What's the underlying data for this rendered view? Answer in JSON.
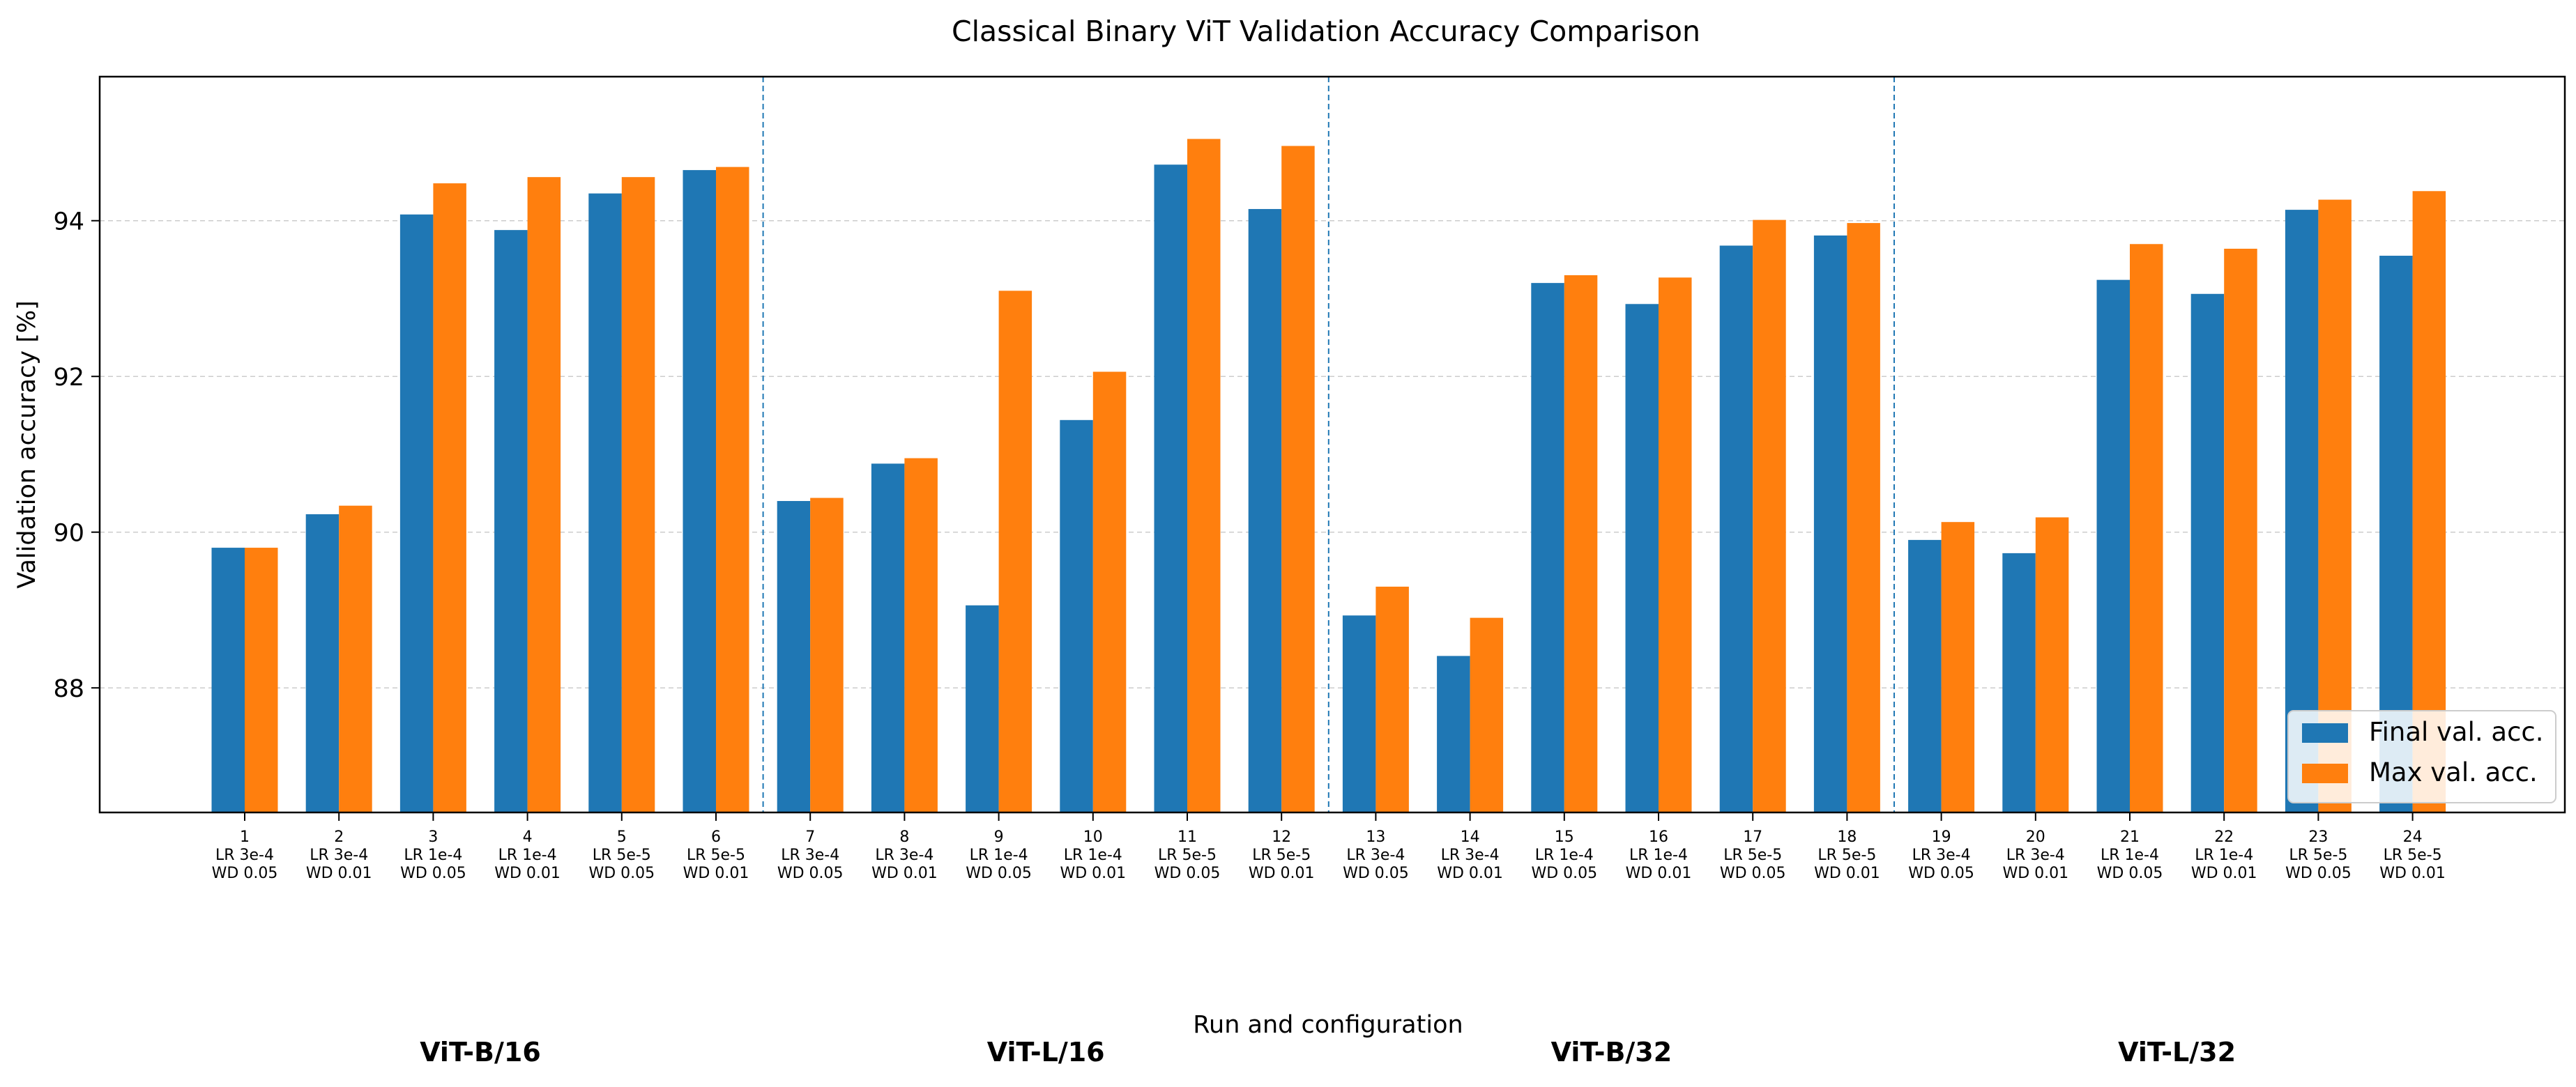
{
  "chart_data": {
    "type": "bar",
    "title": "Classical Binary ViT Validation Accuracy Comparison",
    "xlabel": "Run and configuration",
    "ylabel": "Validation accuracy [%]",
    "ylim": [
      86.4,
      95.85
    ],
    "yticks": [
      88,
      90,
      92,
      94
    ],
    "grid": "horizontal dashed",
    "legend_position": "lower-right",
    "categories": [
      {
        "run": "1",
        "lr": "LR 3e-4",
        "wd": "WD 0.05"
      },
      {
        "run": "2",
        "lr": "LR 3e-4",
        "wd": "WD 0.01"
      },
      {
        "run": "3",
        "lr": "LR 1e-4",
        "wd": "WD 0.05"
      },
      {
        "run": "4",
        "lr": "LR 1e-4",
        "wd": "WD 0.01"
      },
      {
        "run": "5",
        "lr": "LR 5e-5",
        "wd": "WD 0.05"
      },
      {
        "run": "6",
        "lr": "LR 5e-5",
        "wd": "WD 0.01"
      },
      {
        "run": "7",
        "lr": "LR 3e-4",
        "wd": "WD 0.05"
      },
      {
        "run": "8",
        "lr": "LR 3e-4",
        "wd": "WD 0.01"
      },
      {
        "run": "9",
        "lr": "LR 1e-4",
        "wd": "WD 0.05"
      },
      {
        "run": "10",
        "lr": "LR 1e-4",
        "wd": "WD 0.01"
      },
      {
        "run": "11",
        "lr": "LR 5e-5",
        "wd": "WD 0.05"
      },
      {
        "run": "12",
        "lr": "LR 5e-5",
        "wd": "WD 0.01"
      },
      {
        "run": "13",
        "lr": "LR 3e-4",
        "wd": "WD 0.05"
      },
      {
        "run": "14",
        "lr": "LR 3e-4",
        "wd": "WD 0.01"
      },
      {
        "run": "15",
        "lr": "LR 1e-4",
        "wd": "WD 0.05"
      },
      {
        "run": "16",
        "lr": "LR 1e-4",
        "wd": "WD 0.01"
      },
      {
        "run": "17",
        "lr": "LR 5e-5",
        "wd": "WD 0.05"
      },
      {
        "run": "18",
        "lr": "LR 5e-5",
        "wd": "WD 0.01"
      },
      {
        "run": "19",
        "lr": "LR 3e-4",
        "wd": "WD 0.05"
      },
      {
        "run": "20",
        "lr": "LR 3e-4",
        "wd": "WD 0.01"
      },
      {
        "run": "21",
        "lr": "LR 1e-4",
        "wd": "WD 0.05"
      },
      {
        "run": "22",
        "lr": "LR 1e-4",
        "wd": "WD 0.01"
      },
      {
        "run": "23",
        "lr": "LR 5e-5",
        "wd": "WD 0.05"
      },
      {
        "run": "24",
        "lr": "LR 5e-5",
        "wd": "WD 0.01"
      }
    ],
    "series": [
      {
        "name": "Final val. acc.",
        "color": "#1f77b4",
        "values": [
          89.8,
          90.23,
          94.08,
          93.88,
          94.35,
          94.65,
          90.4,
          90.88,
          89.06,
          91.44,
          94.72,
          94.15,
          88.93,
          88.41,
          93.2,
          92.93,
          93.68,
          93.81,
          89.9,
          89.73,
          93.24,
          93.06,
          94.14,
          93.55
        ]
      },
      {
        "name": "Max val. acc.",
        "color": "#ff7f0e",
        "values": [
          89.8,
          90.34,
          94.48,
          94.56,
          94.56,
          94.69,
          90.44,
          90.95,
          93.1,
          92.06,
          95.05,
          94.96,
          89.3,
          88.9,
          93.3,
          93.27,
          94.01,
          93.97,
          90.13,
          90.19,
          93.7,
          93.64,
          94.27,
          94.38
        ]
      }
    ],
    "groups": [
      {
        "label": "ViT-B/16",
        "runs": [
          1,
          6
        ]
      },
      {
        "label": "ViT-L/16",
        "runs": [
          7,
          12
        ]
      },
      {
        "label": "ViT-B/32",
        "runs": [
          13,
          18
        ]
      },
      {
        "label": "ViT-L/32",
        "runs": [
          19,
          24
        ]
      }
    ],
    "separator_color": "#1f77b4"
  }
}
